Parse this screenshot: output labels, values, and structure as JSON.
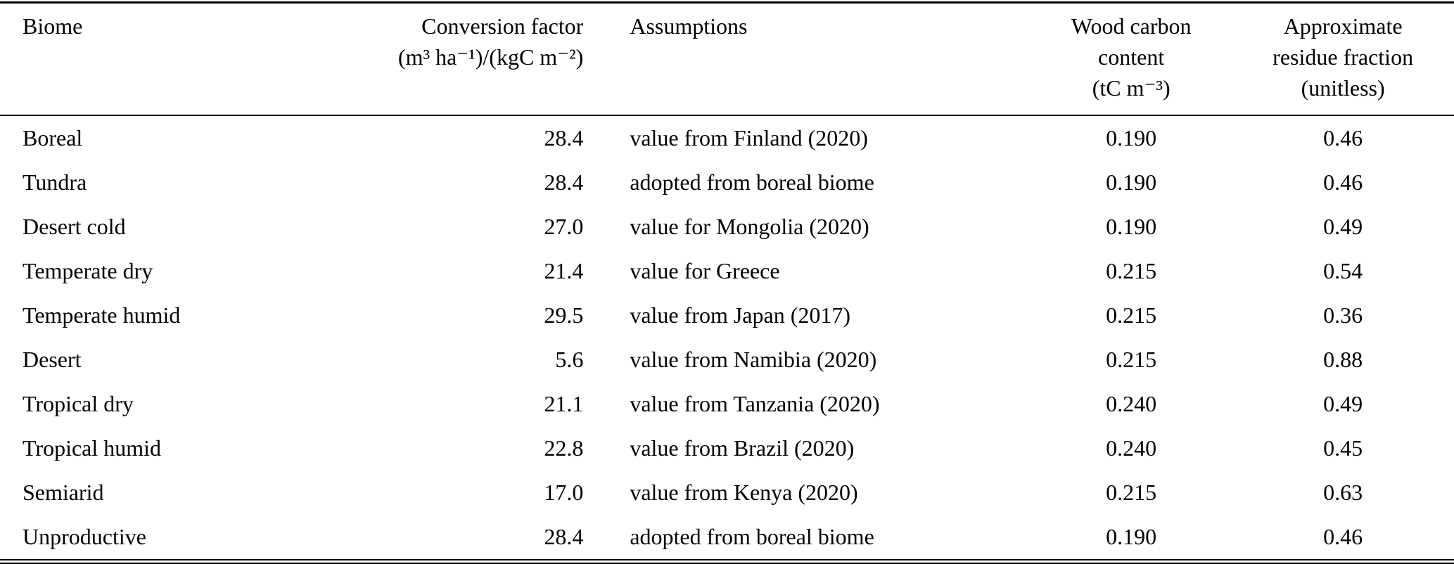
{
  "table": {
    "headers": {
      "biome": "Biome",
      "conversion_factor": {
        "line1": "Conversion factor",
        "line2": "(m³ ha⁻¹)/(kgC m⁻²)"
      },
      "assumptions": "Assumptions",
      "wood_carbon": {
        "line1": "Wood carbon",
        "line2": "content",
        "line3": "(tC m⁻³)"
      },
      "residue_fraction": {
        "line1": "Approximate",
        "line2": "residue fraction",
        "line3": "(unitless)"
      }
    },
    "rows": [
      {
        "biome": "Boreal",
        "conversion_factor": "28.4",
        "assumptions": "value from Finland (2020)",
        "wood_carbon": "0.190",
        "residue_fraction": "0.46"
      },
      {
        "biome": "Tundra",
        "conversion_factor": "28.4",
        "assumptions": "adopted from boreal biome",
        "wood_carbon": "0.190",
        "residue_fraction": "0.46"
      },
      {
        "biome": "Desert cold",
        "conversion_factor": "27.0",
        "assumptions": "value for Mongolia (2020)",
        "wood_carbon": "0.190",
        "residue_fraction": "0.49"
      },
      {
        "biome": "Temperate dry",
        "conversion_factor": "21.4",
        "assumptions": "value for Greece",
        "wood_carbon": "0.215",
        "residue_fraction": "0.54"
      },
      {
        "biome": "Temperate humid",
        "conversion_factor": "29.5",
        "assumptions": "value from Japan (2017)",
        "wood_carbon": "0.215",
        "residue_fraction": "0.36"
      },
      {
        "biome": "Desert",
        "conversion_factor": "5.6",
        "assumptions": "value from Namibia (2020)",
        "wood_carbon": "0.215",
        "residue_fraction": "0.88"
      },
      {
        "biome": "Tropical dry",
        "conversion_factor": "21.1",
        "assumptions": "value from Tanzania (2020)",
        "wood_carbon": "0.240",
        "residue_fraction": "0.49"
      },
      {
        "biome": "Tropical humid",
        "conversion_factor": "22.8",
        "assumptions": "value from Brazil (2020)",
        "wood_carbon": "0.240",
        "residue_fraction": "0.45"
      },
      {
        "biome": "Semiarid",
        "conversion_factor": "17.0",
        "assumptions": "value from Kenya (2020)",
        "wood_carbon": "0.215",
        "residue_fraction": "0.63"
      },
      {
        "biome": "Unproductive",
        "conversion_factor": "28.4",
        "assumptions": "adopted from boreal biome",
        "wood_carbon": "0.190",
        "residue_fraction": "0.46"
      }
    ]
  }
}
